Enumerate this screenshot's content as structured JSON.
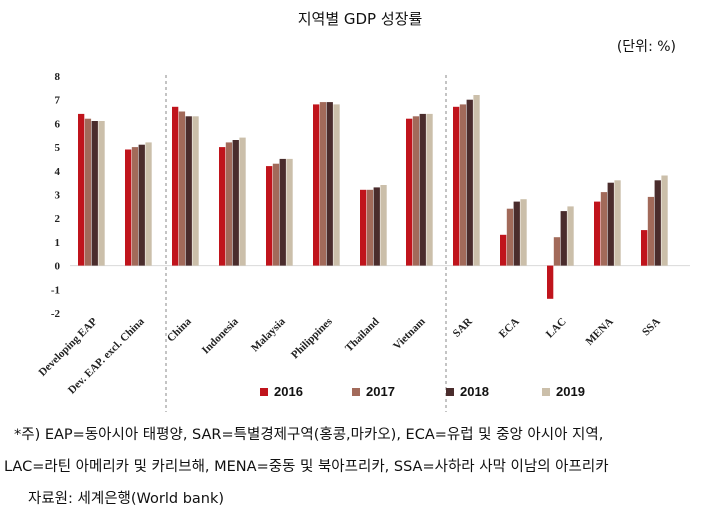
{
  "title": "지역별 GDP 성장률",
  "unit": "(단위: %)",
  "chart_data": {
    "type": "bar",
    "categories": [
      "Developing EAP",
      "Dev. EAP. excl. China",
      "China",
      "Indonesia",
      "Malaysia",
      "Philippines",
      "Thailand",
      "Vietnam",
      "SAR",
      "ECA",
      "LAC",
      "MENA",
      "SSA"
    ],
    "series": [
      {
        "name": "2016",
        "color": "#c0141c",
        "values": [
          6.4,
          4.9,
          6.7,
          5.0,
          4.2,
          6.8,
          3.2,
          6.2,
          6.7,
          1.3,
          -1.4,
          2.7,
          1.5
        ]
      },
      {
        "name": "2017",
        "color": "#a26a5a",
        "values": [
          6.2,
          5.0,
          6.5,
          5.2,
          4.3,
          6.9,
          3.2,
          6.3,
          6.8,
          2.4,
          1.2,
          3.1,
          2.9
        ]
      },
      {
        "name": "2018",
        "color": "#4a2c2c",
        "values": [
          6.1,
          5.1,
          6.3,
          5.3,
          4.5,
          6.9,
          3.3,
          6.4,
          7.0,
          2.7,
          2.3,
          3.5,
          3.6
        ]
      },
      {
        "name": "2019",
        "color": "#cbbfaa",
        "values": [
          6.1,
          5.2,
          6.3,
          5.4,
          4.5,
          6.8,
          3.4,
          6.4,
          7.2,
          2.8,
          2.5,
          3.6,
          3.8
        ]
      }
    ],
    "ylim": [
      -2,
      8
    ],
    "yticks": [
      "8",
      "7",
      "6",
      "5",
      "4",
      "3",
      "2",
      "1",
      "0",
      "-1",
      "-2"
    ],
    "xlabel": "",
    "ylabel": "",
    "grid": false,
    "legend_position": "bottom"
  },
  "notes": {
    "line1": "*주) EAP=동아시아 태평양, SAR=특별경제구역(홍콩,마카오), ECA=유럽 및 중앙 아시아 지역,",
    "line2": "LAC=라틴 아메리카 및 카리브해, MENA=중동 및 북아프리카, SSA=사하라 사막 이남의 아프리카",
    "line3": "자료원: 세계은행(World bank)"
  }
}
